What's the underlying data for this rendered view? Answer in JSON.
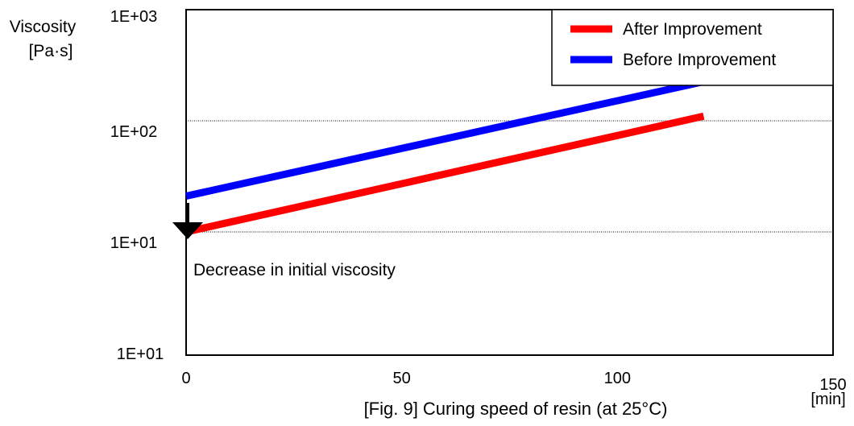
{
  "chart_data": {
    "type": "line",
    "caption": "[Fig. 9] Curing speed of resin (at 25°C)",
    "ylabel": "Viscosity",
    "ylabel_unit": "[Pa·s]",
    "xlabel_unit": "[min]",
    "x_ticks": [
      0,
      50,
      100,
      150
    ],
    "x_tick_labels": [
      "0",
      "50",
      "100",
      "150"
    ],
    "xlim": [
      0,
      150
    ],
    "y_scale": "log",
    "y_tick_labels": [
      "1E+03",
      "1E+02",
      "1E+01",
      "1E+01"
    ],
    "grid": "horizontal dotted",
    "legend_position": "top-right",
    "series": [
      {
        "name": "After Improvement",
        "color": "#ff0000",
        "x": [
          0,
          120
        ],
        "y": [
          10,
          110
        ]
      },
      {
        "name": "Before Improvement",
        "color": "#0000ff",
        "x": [
          0,
          120
        ],
        "y": [
          21,
          225
        ]
      }
    ],
    "annotation": "Decrease in initial viscosity"
  }
}
